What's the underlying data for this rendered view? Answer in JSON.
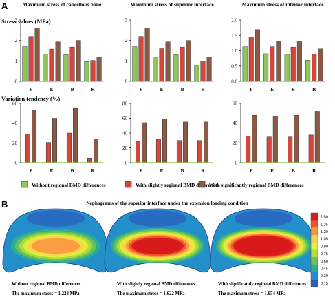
{
  "panel_a": {
    "label": "A",
    "stress_row_label": "Stress values (MPa)",
    "variation_row_label": "Variation tendency (%)",
    "legend": [
      {
        "label": "Without regional BMD differences",
        "color": "#8fc758"
      },
      {
        "label": "With slightly regional BMD differences",
        "color": "#d9453a"
      },
      {
        "label": "With significantly regional BMD differences",
        "color": "#8b5a45"
      }
    ]
  },
  "chart_data": [
    {
      "type": "bar",
      "title": "Maximum stress of cancellous bone",
      "categories": [
        "F",
        "E",
        "B",
        "R"
      ],
      "ylim": [
        0,
        3
      ],
      "yticks": [
        0,
        1,
        2,
        3
      ],
      "series": [
        {
          "name": "Without regional BMD differences",
          "values": [
            1.7,
            1.33,
            1.3,
            0.97
          ]
        },
        {
          "name": "With slightly regional BMD differences",
          "values": [
            2.2,
            1.58,
            1.68,
            1.02
          ]
        },
        {
          "name": "With significantly regional BMD differences",
          "values": [
            2.62,
            1.93,
            2.0,
            1.2
          ]
        }
      ]
    },
    {
      "type": "bar",
      "title": "Maximum stress of superior interface",
      "categories": [
        "F",
        "E",
        "B",
        "R"
      ],
      "ylim": [
        0,
        3
      ],
      "yticks": [
        0,
        1,
        2,
        3
      ],
      "series": [
        {
          "name": "Without regional BMD differences",
          "values": [
            1.7,
            1.2,
            1.3,
            0.78
          ]
        },
        {
          "name": "With slightly regional BMD differences",
          "values": [
            2.2,
            1.6,
            1.68,
            1.0
          ]
        },
        {
          "name": "With significantly regional BMD differences",
          "values": [
            2.62,
            1.93,
            2.0,
            1.2
          ]
        }
      ]
    },
    {
      "type": "bar",
      "title": "Maximum stress of inferior interface",
      "categories": [
        "F",
        "E",
        "B",
        "R"
      ],
      "ylim": [
        0,
        2
      ],
      "yticks": [
        0,
        0.5,
        1.0,
        1.5,
        2.0
      ],
      "series": [
        {
          "name": "Without regional BMD differences",
          "values": [
            1.13,
            0.9,
            0.88,
            0.69
          ]
        },
        {
          "name": "With slightly regional BMD differences",
          "values": [
            1.45,
            1.13,
            1.12,
            0.88
          ]
        },
        {
          "name": "With significantly regional BMD differences",
          "values": [
            1.69,
            1.31,
            1.31,
            1.06
          ]
        }
      ]
    },
    {
      "type": "bar",
      "title": "",
      "categories": [
        "F",
        "E",
        "B",
        "R"
      ],
      "ylim": [
        0,
        60
      ],
      "yticks": [
        0,
        20,
        40,
        60
      ],
      "series": [
        {
          "name": "With slightly regional BMD differences",
          "values": [
            29,
            20.5,
            30,
            4
          ]
        },
        {
          "name": "With significantly regional BMD differences",
          "values": [
            53,
            45,
            55,
            24
          ]
        }
      ]
    },
    {
      "type": "bar",
      "title": "",
      "categories": [
        "F",
        "E",
        "B",
        "R"
      ],
      "ylim": [
        0,
        80
      ],
      "yticks": [
        0,
        20,
        40,
        60,
        80
      ],
      "series": [
        {
          "name": "With slightly regional BMD differences",
          "values": [
            29,
            32,
            30,
            30
          ]
        },
        {
          "name": "With significantly regional BMD differences",
          "values": [
            54,
            59,
            55,
            55
          ]
        }
      ]
    },
    {
      "type": "bar",
      "title": "",
      "categories": [
        "F",
        "E",
        "B",
        "R"
      ],
      "ylim": [
        0,
        60
      ],
      "yticks": [
        0,
        20,
        40,
        60
      ],
      "series": [
        {
          "name": "With slightly regional BMD differences",
          "values": [
            27,
            26,
            26,
            28
          ]
        },
        {
          "name": "With significantly regional BMD differences",
          "values": [
            48,
            47,
            48,
            52
          ]
        }
      ]
    }
  ],
  "panel_b": {
    "label": "B",
    "title": "Nephograms of the superior interface under the extension loading condition",
    "models": [
      {
        "caption": "Without regional BMD differences",
        "max_label": "The maximum stress = 1.228 MPa",
        "max_stress": 1.228
      },
      {
        "caption": "With slightly regional BMD differences",
        "max_label": "The maximum stress = 1.622 MPa",
        "max_stress": 1.622
      },
      {
        "caption": "With significantly regional BMD differences",
        "max_label": "The maximum stress = 1.954 MPa",
        "max_stress": 1.954
      }
    ],
    "colorbar": {
      "ticks": [
        "1.50",
        "1.35",
        "1.20",
        "1.05",
        "0.90",
        "0.75",
        "0.60",
        "0.45",
        "0.30",
        "0.15"
      ],
      "colors": [
        "#d7191c",
        "#f4502a",
        "#f99740",
        "#fdd14a",
        "#e6ef3c",
        "#b2de3a",
        "#6cc35a",
        "#32b08a",
        "#2390c9",
        "#2b5dbf"
      ]
    }
  }
}
